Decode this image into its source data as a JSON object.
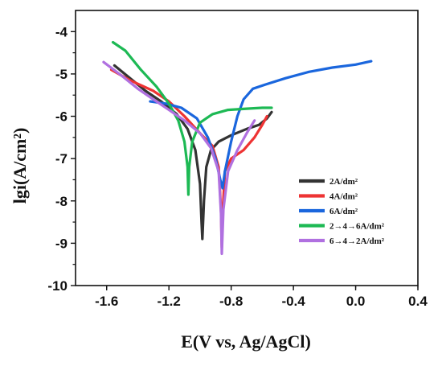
{
  "chart_data": {
    "type": "line",
    "title": "",
    "xlabel": "E(V vs, Ag/AgCl)",
    "ylabel": "lgi(A/cm²)",
    "xlim": [
      -1.8,
      0.4
    ],
    "ylim": [
      -10,
      -3.5
    ],
    "x_ticks": [
      -1.6,
      -1.2,
      -0.8,
      -0.4,
      0.0,
      0.4
    ],
    "x_tick_labels": [
      "-1.6",
      "-1.2",
      "-0.8",
      "-0.4",
      "0.0",
      "0.4"
    ],
    "y_ticks": [
      -10,
      -9,
      -8,
      -7,
      -6,
      -5,
      -4
    ],
    "y_tick_labels": [
      "-10",
      "-9",
      "-8",
      "-7",
      "-6",
      "-5",
      "-4"
    ],
    "grid": false,
    "legend_position": "lower-right",
    "series": [
      {
        "name": "2A/dm²",
        "color": "#333333",
        "points": [
          [
            -1.55,
            -4.8
          ],
          [
            -1.45,
            -5.1
          ],
          [
            -1.35,
            -5.4
          ],
          [
            -1.25,
            -5.65
          ],
          [
            -1.15,
            -5.95
          ],
          [
            -1.08,
            -6.3
          ],
          [
            -1.03,
            -6.8
          ],
          [
            -1.0,
            -7.6
          ],
          [
            -0.99,
            -8.5
          ],
          [
            -0.985,
            -8.9
          ],
          [
            -0.975,
            -8.0
          ],
          [
            -0.96,
            -7.2
          ],
          [
            -0.93,
            -6.8
          ],
          [
            -0.88,
            -6.6
          ],
          [
            -0.8,
            -6.45
          ],
          [
            -0.7,
            -6.3
          ],
          [
            -0.62,
            -6.2
          ],
          [
            -0.57,
            -6.05
          ],
          [
            -0.54,
            -5.9
          ]
        ]
      },
      {
        "name": "4A/dm²",
        "color": "#ee3333",
        "points": [
          [
            -1.57,
            -4.9
          ],
          [
            -1.45,
            -5.15
          ],
          [
            -1.3,
            -5.4
          ],
          [
            -1.2,
            -5.65
          ],
          [
            -1.1,
            -6.0
          ],
          [
            -1.0,
            -6.4
          ],
          [
            -0.92,
            -6.7
          ],
          [
            -0.88,
            -7.2
          ],
          [
            -0.865,
            -8.2
          ],
          [
            -0.86,
            -9.1
          ],
          [
            -0.855,
            -8.3
          ],
          [
            -0.84,
            -7.3
          ],
          [
            -0.8,
            -7.0
          ],
          [
            -0.72,
            -6.8
          ],
          [
            -0.65,
            -6.5
          ],
          [
            -0.6,
            -6.2
          ],
          [
            -0.57,
            -6.0
          ]
        ]
      },
      {
        "name": "6A/dm²",
        "color": "#1a66dd",
        "points": [
          [
            -1.32,
            -5.65
          ],
          [
            -1.22,
            -5.7
          ],
          [
            -1.12,
            -5.8
          ],
          [
            -1.02,
            -6.05
          ],
          [
            -0.95,
            -6.5
          ],
          [
            -0.9,
            -7.0
          ],
          [
            -0.87,
            -7.5
          ],
          [
            -0.855,
            -7.7
          ],
          [
            -0.84,
            -7.3
          ],
          [
            -0.8,
            -6.6
          ],
          [
            -0.76,
            -6.0
          ],
          [
            -0.72,
            -5.6
          ],
          [
            -0.66,
            -5.35
          ],
          [
            -0.58,
            -5.25
          ],
          [
            -0.45,
            -5.1
          ],
          [
            -0.3,
            -4.95
          ],
          [
            -0.15,
            -4.85
          ],
          [
            0.0,
            -4.78
          ],
          [
            0.1,
            -4.7
          ]
        ]
      },
      {
        "name": "2→4→6A/dm²",
        "color": "#1db954",
        "points": [
          [
            -1.56,
            -4.25
          ],
          [
            -1.48,
            -4.45
          ],
          [
            -1.38,
            -4.9
          ],
          [
            -1.28,
            -5.3
          ],
          [
            -1.2,
            -5.7
          ],
          [
            -1.14,
            -6.1
          ],
          [
            -1.1,
            -6.6
          ],
          [
            -1.08,
            -7.2
          ],
          [
            -1.075,
            -7.85
          ],
          [
            -1.07,
            -7.2
          ],
          [
            -1.05,
            -6.6
          ],
          [
            -1.0,
            -6.15
          ],
          [
            -0.92,
            -5.95
          ],
          [
            -0.82,
            -5.85
          ],
          [
            -0.7,
            -5.82
          ],
          [
            -0.6,
            -5.8
          ],
          [
            -0.54,
            -5.8
          ]
        ]
      },
      {
        "name": "6→4→2A/dm²",
        "color": "#b070e0",
        "points": [
          [
            -1.62,
            -4.72
          ],
          [
            -1.5,
            -5.05
          ],
          [
            -1.4,
            -5.35
          ],
          [
            -1.3,
            -5.6
          ],
          [
            -1.2,
            -5.85
          ],
          [
            -1.1,
            -6.1
          ],
          [
            -1.0,
            -6.4
          ],
          [
            -0.93,
            -6.75
          ],
          [
            -0.88,
            -7.3
          ],
          [
            -0.865,
            -8.3
          ],
          [
            -0.86,
            -9.25
          ],
          [
            -0.85,
            -8.2
          ],
          [
            -0.82,
            -7.3
          ],
          [
            -0.76,
            -6.8
          ],
          [
            -0.7,
            -6.4
          ],
          [
            -0.65,
            -6.1
          ]
        ]
      }
    ]
  }
}
